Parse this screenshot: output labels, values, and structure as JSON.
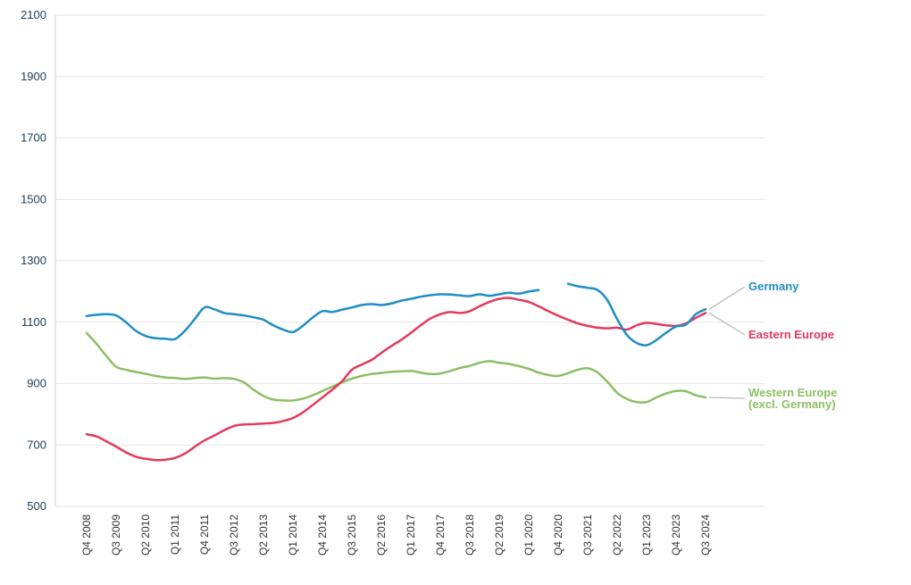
{
  "chart_data": {
    "type": "line",
    "title": "",
    "xlabel": "",
    "ylabel": "",
    "ylim": [
      500,
      2100
    ],
    "y_ticks": [
      500,
      700,
      900,
      1100,
      1300,
      1500,
      1700,
      1900,
      2100
    ],
    "grid": true,
    "n_points": 64,
    "tick_every": 3,
    "x_tick_labels": [
      "Q4 2008",
      "Q3 2009",
      "Q2 2010",
      "Q1 2011",
      "Q4 2011",
      "Q3 2012",
      "Q2 2013",
      "Q1 2014",
      "Q4 2014",
      "Q3 2015",
      "Q2 2016",
      "Q1 2017",
      "Q4 2017",
      "Q3 2018",
      "Q2 2019",
      "Q1 2020",
      "Q4 2020",
      "Q3 2021",
      "Q2 2022",
      "Q1 2023",
      "Q4 2023",
      "Q3 2024"
    ],
    "legend_position": "right-of-lines",
    "series": [
      {
        "name": "Germany",
        "color": "#1d8ec5",
        "values": [
          1120,
          1124,
          1126,
          1122,
          1100,
          1072,
          1055,
          1048,
          1046,
          1045,
          1072,
          1110,
          1148,
          1142,
          1130,
          1126,
          1122,
          1116,
          1108,
          1090,
          1076,
          1068,
          1088,
          1115,
          1136,
          1133,
          1141,
          1148,
          1156,
          1159,
          1156,
          1161,
          1170,
          1176,
          1183,
          1188,
          1191,
          1190,
          1187,
          1185,
          1191,
          1186,
          1191,
          1196,
          1193,
          1200,
          1205,
          null,
          null,
          1225,
          1217,
          1212,
          1205,
          1172,
          1110,
          1058,
          1032,
          1025,
          1042,
          1066,
          1086,
          1092,
          1126,
          1142
        ]
      },
      {
        "name": "Eastern Europe",
        "color": "#e23a5c",
        "values": [
          735,
          728,
          712,
          695,
          676,
          662,
          655,
          651,
          652,
          658,
          672,
          694,
          715,
          731,
          748,
          762,
          767,
          768,
          770,
          772,
          778,
          788,
          806,
          830,
          855,
          880,
          908,
          945,
          962,
          977,
          1000,
          1022,
          1042,
          1065,
          1090,
          1112,
          1126,
          1133,
          1130,
          1136,
          1152,
          1166,
          1176,
          1179,
          1173,
          1166,
          1152,
          1136,
          1121,
          1108,
          1096,
          1088,
          1082,
          1080,
          1082,
          1076,
          1090,
          1098,
          1094,
          1090,
          1088,
          1096,
          1114,
          1130
        ]
      },
      {
        "name": "Western Europe (excl. Germany)",
        "color": "#8cbf63",
        "values": [
          1065,
          1030,
          990,
          955,
          945,
          938,
          932,
          925,
          920,
          918,
          915,
          918,
          920,
          916,
          918,
          915,
          904,
          880,
          860,
          848,
          845,
          845,
          851,
          862,
          876,
          890,
          904,
          916,
          925,
          931,
          935,
          938,
          940,
          941,
          936,
          931,
          933,
          941,
          951,
          958,
          968,
          973,
          968,
          964,
          957,
          948,
          936,
          928,
          925,
          934,
          945,
          950,
          936,
          906,
          870,
          850,
          840,
          840,
          855,
          868,
          876,
          875,
          862,
          855
        ]
      }
    ]
  },
  "labels": {
    "germany": "Germany",
    "eastern": "Eastern Europe",
    "western_line1": "Western Europe",
    "western_line2": "(excl. Germany)"
  },
  "colors": {
    "germany": "#1d8ec5",
    "eastern": "#e23a5c",
    "western": "#8cbf63",
    "grid": "#e6e6e6",
    "axis": "#cccccc",
    "leader": "#b8b8b8",
    "y_label_text": "#1d3d52",
    "x_label_text": "#333333"
  }
}
